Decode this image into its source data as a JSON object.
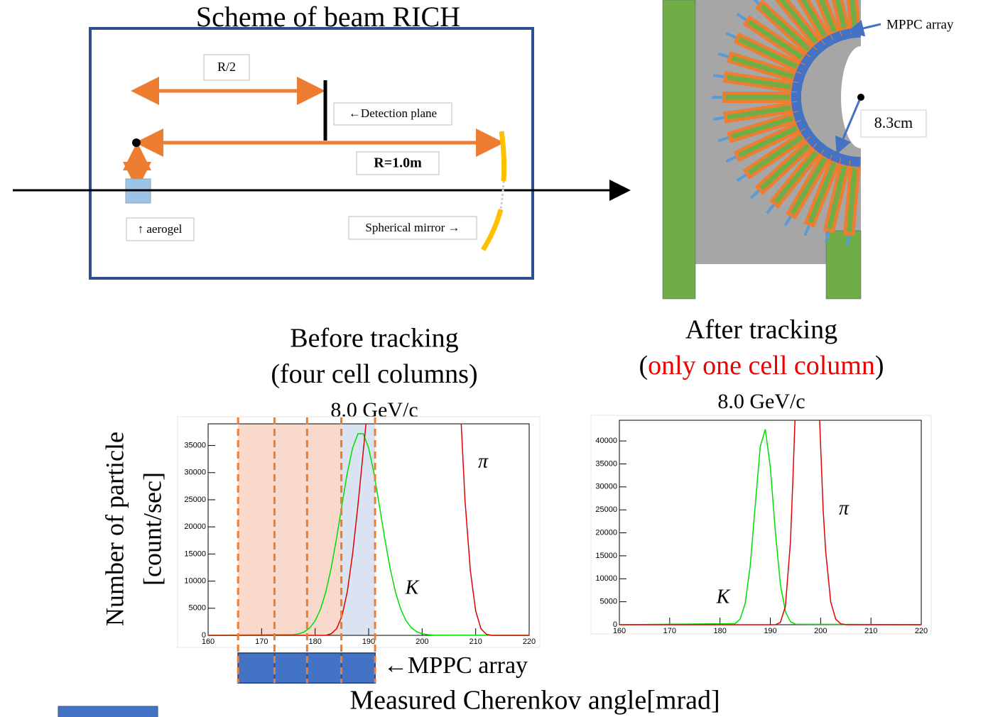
{
  "scheme": {
    "title": "Scheme of beam RICH",
    "half_radius": "R/2",
    "detection_plane": "←Detection plane",
    "radius": "R=1.0m",
    "aerogel": "↑ aerogel",
    "mirror": "Spherical mirror →"
  },
  "detector": {
    "mppc_label": "MPPC array",
    "radius_label": "8.3cm"
  },
  "axes_labels": {
    "y": [
      "Number of particle",
      "[count/sec]"
    ],
    "x": "Measured Cherenkov angle[mrad]"
  },
  "chart_data": [
    {
      "type": "line",
      "heading": "Before tracking",
      "subheading": [
        "(four cell columns)"
      ],
      "title": "8.0 GeV/c",
      "xlim": [
        160,
        220
      ],
      "ylim": [
        0,
        39000
      ],
      "xticks": [
        160,
        170,
        180,
        190,
        200,
        210,
        220
      ],
      "yticks": [
        0,
        5000,
        10000,
        15000,
        20000,
        25000,
        30000,
        35000
      ],
      "series": [
        {
          "name": "K",
          "color": "#00dd00",
          "x": [
            160,
            176,
            177,
            178,
            179,
            180,
            181,
            182,
            183,
            184,
            185,
            186,
            187,
            188,
            189,
            190,
            191,
            192,
            193,
            194,
            195,
            196,
            197,
            198,
            199,
            200,
            201,
            202,
            220
          ],
          "values": [
            0,
            124,
            299,
            667,
            1387,
            2678,
            4810,
            8013,
            12420,
            17890,
            23970,
            29850,
            34540,
            37160,
            37160,
            34540,
            29850,
            23970,
            17890,
            12420,
            8013,
            4810,
            2678,
            1387,
            667,
            299,
            124,
            50,
            0
          ]
        },
        {
          "name": "π",
          "color": "#e00000",
          "x": [
            160,
            182,
            183,
            184,
            185,
            186,
            187,
            188,
            189,
            189.5,
            198,
            207.3,
            208,
            209,
            210,
            211,
            212,
            213,
            220
          ],
          "values": [
            0,
            0,
            300,
            1200,
            3500,
            8000,
            15000,
            24000,
            34000,
            39000,
            null,
            39000,
            25000,
            12000,
            4500,
            1200,
            200,
            0,
            0
          ]
        }
      ],
      "cell_edges": [
        165.6,
        172.4,
        178.5,
        184.9,
        191.2
      ],
      "region_colors": [
        "#f9d9cb",
        "#d9e3f1"
      ],
      "cell_label": "←MPPC array"
    },
    {
      "type": "line",
      "heading": "After tracking",
      "subheading": [
        "(",
        "only one cell column",
        ")"
      ],
      "highlight_color": "#ee0000",
      "title": "8.0 GeV/c",
      "xlim": [
        160,
        220
      ],
      "ylim": [
        0,
        44500
      ],
      "xticks": [
        160,
        170,
        180,
        190,
        200,
        210,
        220
      ],
      "yticks": [
        0,
        5000,
        10000,
        15000,
        20000,
        25000,
        30000,
        35000,
        40000
      ],
      "series": [
        {
          "name": "K",
          "color": "#00dd00",
          "x": [
            160,
            183,
            184,
            185,
            186,
            187,
            188,
            189,
            190,
            191,
            192,
            193,
            194,
            195,
            220
          ],
          "values": [
            0,
            238,
            1223,
            4610,
            12760,
            25960,
            38770,
            42540,
            34280,
            20280,
            8810,
            2810,
            660,
            114,
            0
          ]
        },
        {
          "name": "π",
          "color": "#e00000",
          "x": [
            160,
            191,
            192,
            193,
            194,
            194.5,
            194.9,
            197,
            199.8,
            200.5,
            201,
            202,
            203,
            204,
            205,
            220
          ],
          "values": [
            0,
            0,
            500,
            4000,
            18000,
            32000,
            44500,
            null,
            44500,
            25000,
            16000,
            5000,
            1200,
            200,
            0,
            0
          ]
        }
      ]
    }
  ]
}
